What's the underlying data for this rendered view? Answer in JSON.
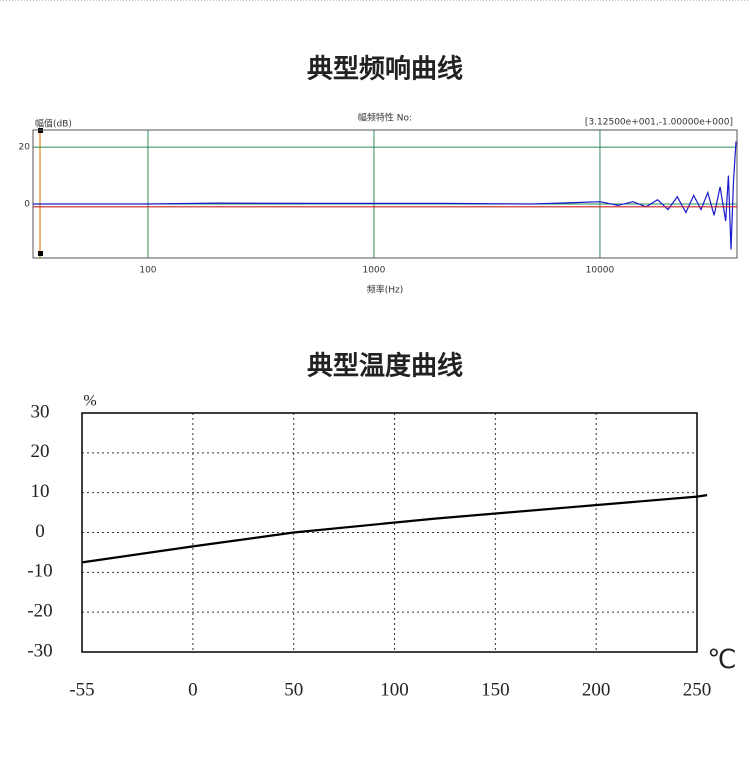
{
  "chart_data": [
    {
      "type": "line",
      "heading": "典型频响曲线",
      "title": "幅频特性 No:",
      "y_label": "幅值(dB)",
      "x_label": "频率(Hz)",
      "annotation": "[3.12500e+001,-1.00000e+000]",
      "xscale": "log",
      "grid": true,
      "grid_style": "solid",
      "xlim": [
        31,
        40400
      ],
      "ylim": [
        -19,
        26
      ],
      "xticks": [
        100,
        1000,
        10000
      ],
      "yticks": [
        0,
        20
      ],
      "series": [
        {
          "color": "#1a1acc",
          "x": [
            31,
            50,
            100,
            200,
            500,
            1000,
            2000,
            5000,
            8000,
            10000,
            12000,
            14000,
            16000,
            18000,
            20000,
            22000,
            24000,
            26000,
            28000,
            30000,
            32000,
            34000,
            36000,
            37000,
            38000,
            39000,
            40000
          ],
          "values": [
            0,
            0,
            0,
            0.3,
            0.2,
            0.2,
            0.2,
            0,
            0.5,
            0.8,
            -0.5,
            0.8,
            -1,
            1.5,
            -2,
            2.5,
            -3,
            3,
            -2,
            4,
            -4,
            6,
            -6,
            10,
            -16,
            8,
            22
          ]
        },
        {
          "color": "#cc2222",
          "x": [
            31,
            40400
          ],
          "values": [
            -1,
            -1
          ]
        }
      ]
    },
    {
      "type": "line",
      "heading": "典型温度曲线",
      "y_label": "%",
      "x_label": "℃",
      "grid": true,
      "grid_style": "dotted",
      "xlim": [
        -55,
        250
      ],
      "ylim": [
        -30,
        30
      ],
      "xticks": [
        -55,
        0,
        50,
        100,
        150,
        200,
        250
      ],
      "yticks": [
        30,
        20,
        10,
        0,
        -10,
        -20,
        -30
      ],
      "series": [
        {
          "color": "#000000",
          "x": [
            -55,
            0,
            50,
            120,
            250,
            255
          ],
          "values": [
            -7.5,
            -3.5,
            0,
            3.5,
            9,
            9.4
          ]
        }
      ]
    }
  ]
}
